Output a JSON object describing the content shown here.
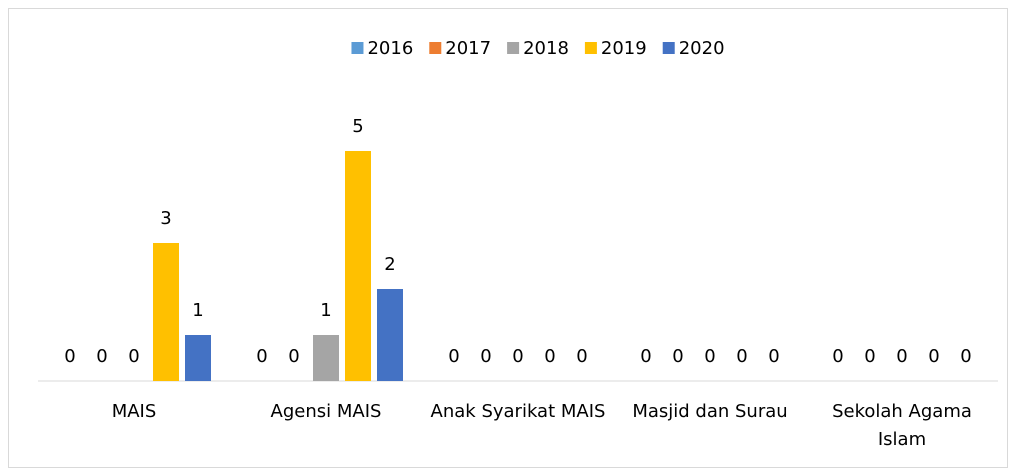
{
  "chart_data": {
    "type": "bar",
    "categories": [
      "MAIS",
      "Agensi MAIS",
      "Anak Syarikat MAIS",
      "Masjid dan Surau",
      "Sekolah Agama Islam"
    ],
    "series": [
      {
        "name": "2016",
        "color": "#5b9bd5",
        "values": [
          0,
          0,
          0,
          0,
          0
        ]
      },
      {
        "name": "2017",
        "color": "#ed7d31",
        "values": [
          0,
          0,
          0,
          0,
          0
        ]
      },
      {
        "name": "2018",
        "color": "#a5a5a5",
        "values": [
          0,
          1,
          0,
          0,
          0
        ]
      },
      {
        "name": "2019",
        "color": "#ffc000",
        "values": [
          3,
          5,
          0,
          0,
          0
        ]
      },
      {
        "name": "2020",
        "color": "#4472c4",
        "values": [
          1,
          2,
          0,
          0,
          0
        ]
      }
    ],
    "ylim": [
      0,
      6
    ],
    "legend": "top"
  }
}
